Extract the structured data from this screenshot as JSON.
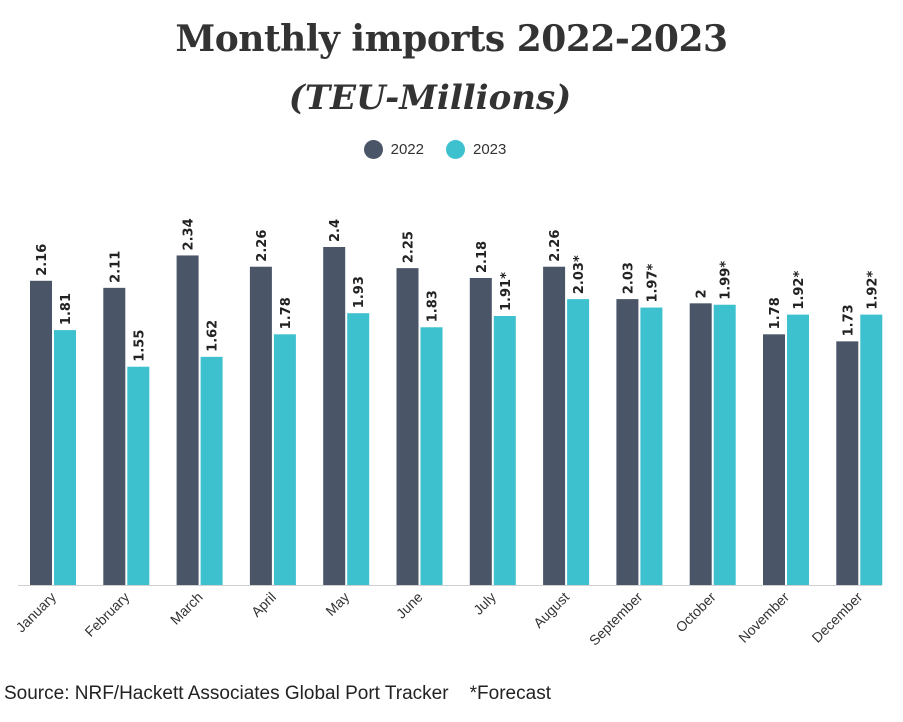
{
  "chart_data": {
    "type": "bar",
    "title": "Monthly imports 2022-2023",
    "subtitle": "(TEU-Millions)",
    "categories": [
      "January",
      "February",
      "March",
      "April",
      "May",
      "June",
      "July",
      "August",
      "September",
      "October",
      "November",
      "December"
    ],
    "series": [
      {
        "name": "2022",
        "color": "#4a5568",
        "values": [
          2.16,
          2.11,
          2.34,
          2.26,
          2.4,
          2.25,
          2.18,
          2.26,
          2.03,
          2,
          1.78,
          1.73
        ],
        "labels": [
          "2.16",
          "2.11",
          "2.34",
          "2.26",
          "2.4",
          "2.25",
          "2.18",
          "2.26",
          "2.03",
          "2",
          "1.78",
          "1.73"
        ]
      },
      {
        "name": "2023",
        "color": "#3dc1cf",
        "values": [
          1.81,
          1.55,
          1.62,
          1.78,
          1.93,
          1.83,
          1.91,
          2.03,
          1.97,
          1.99,
          1.92,
          1.92
        ],
        "labels": [
          "1.81",
          "1.55",
          "1.62",
          "1.78",
          "1.93",
          "1.83",
          "1.91*",
          "2.03*",
          "1.97*",
          "1.99*",
          "1.92*",
          "1.92*"
        ]
      }
    ],
    "ylim": [
      0,
      2.4
    ],
    "grid": false,
    "legend": "top-center",
    "xlabel": "",
    "ylabel": ""
  },
  "footer": {
    "source": "Source: NRF/Hackett Associates Global Port Tracker    *Forecast"
  }
}
